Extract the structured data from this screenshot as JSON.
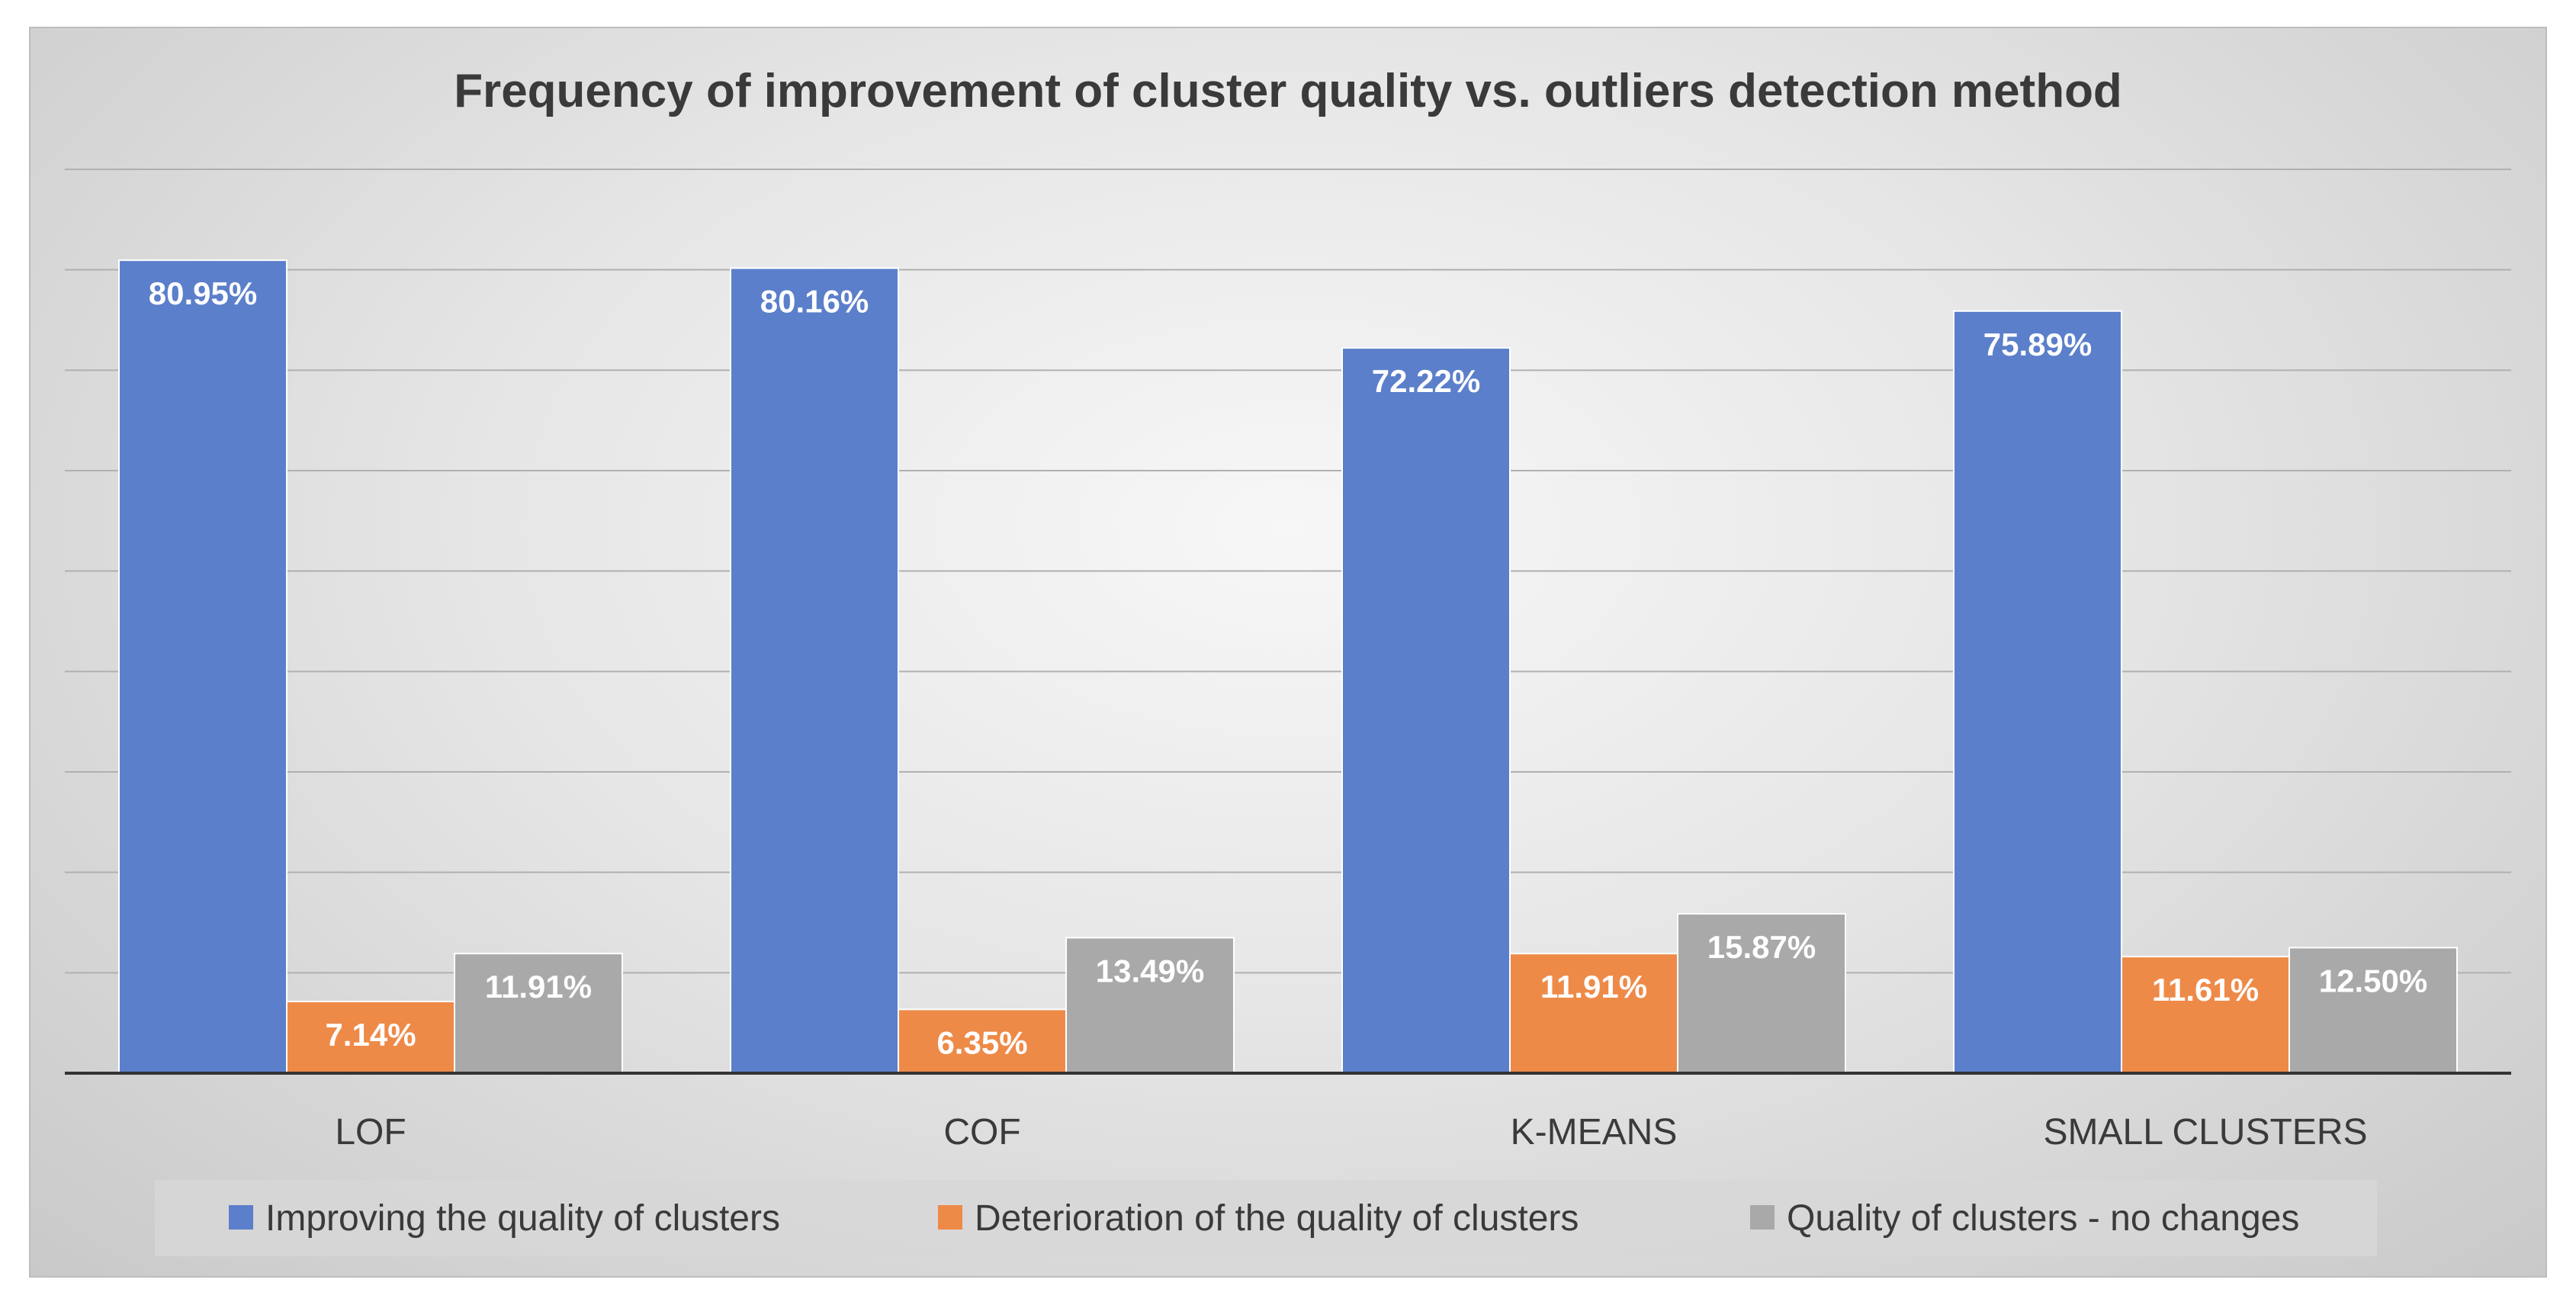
{
  "chart_data": {
    "type": "bar",
    "title": "Frequency of improvement of cluster quality vs. outliers detection method",
    "categories": [
      "LOF",
      "COF",
      "K-MEANS",
      "SMALL CLUSTERS"
    ],
    "series": [
      {
        "name": "Improving the quality of clusters",
        "color": "#5b7fca",
        "values": [
          80.95,
          80.16,
          72.22,
          75.89
        ],
        "labels": [
          "80.95%",
          "80.16%",
          "72.22%",
          "75.89%"
        ]
      },
      {
        "name": "Deterioration of the quality of clusters",
        "color": "#ee8a48",
        "values": [
          7.14,
          6.35,
          11.91,
          11.61
        ],
        "labels": [
          "7.14%",
          "6.35%",
          "11.91%",
          "11.61%"
        ]
      },
      {
        "name": "Quality of clusters - no changes",
        "color": "#a9a9a9",
        "values": [
          11.91,
          13.49,
          15.87,
          12.5
        ],
        "labels": [
          "11.91%",
          "13.49%",
          "15.87%",
          "12.50%"
        ]
      }
    ],
    "ylim": [
      0,
      90
    ],
    "grid": true,
    "legend_position": "bottom"
  }
}
